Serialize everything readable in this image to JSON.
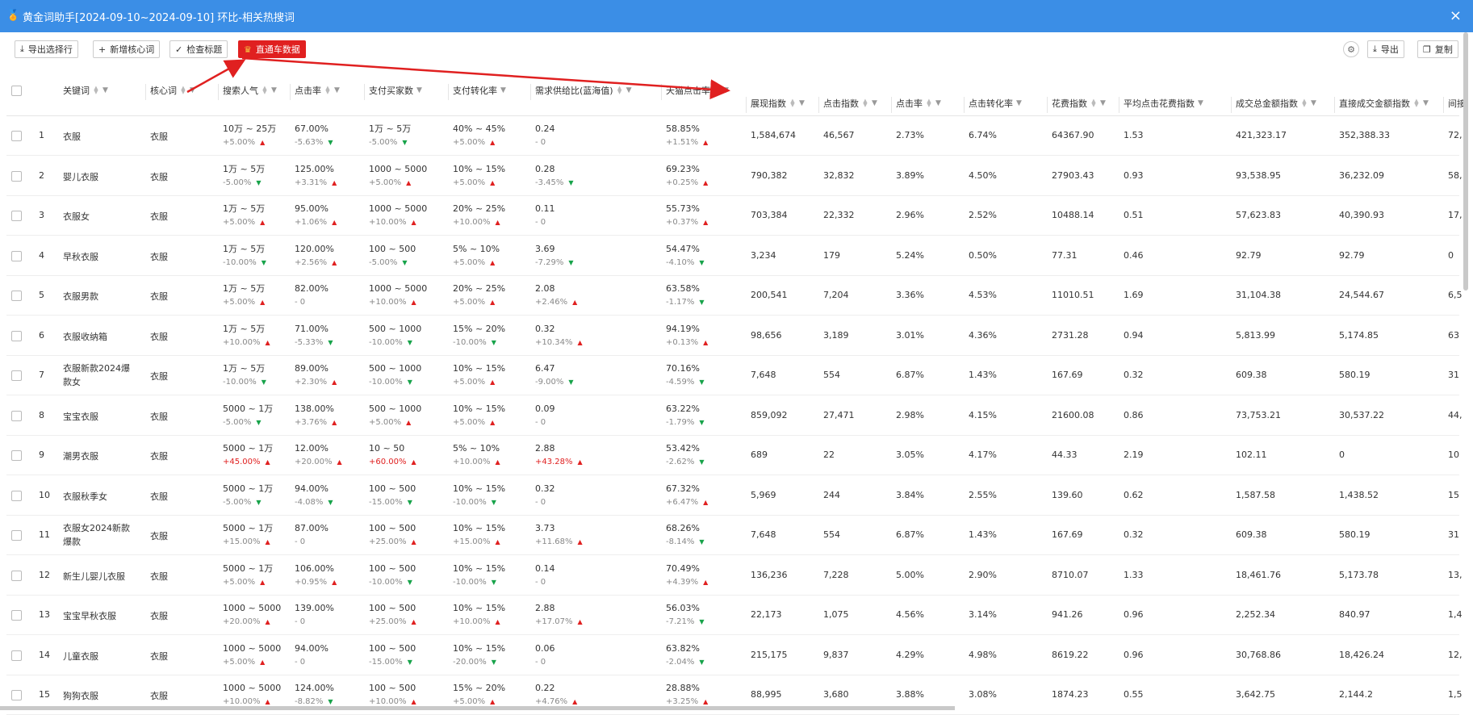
{
  "window": {
    "title": "黄金词助手[2024-09-10~2024-09-10] 环比-相关热搜词",
    "close_icon": "×"
  },
  "toolbar": {
    "export_selected": "导出选择行",
    "add_core": "新增核心词",
    "check_title": "检查标题",
    "ztc_data": "直通车数据",
    "export": "导出",
    "copy": "复制"
  },
  "columns": [
    "关键词",
    "核心词",
    "搜索人气",
    "点击率",
    "支付买家数",
    "支付转化率",
    "需求供给比(蓝海值)",
    "天猫点击率",
    "展现指数",
    "点击指数",
    "点击率",
    "点击转化率",
    "花费指数",
    "平均点击花费指数",
    "成交总金额指数",
    "直接成交金额指数",
    "间接"
  ],
  "rows": [
    {
      "no": "1",
      "kw": "衣服",
      "core": "衣服",
      "pop": "10万 ~ 25万",
      "pop_c": "+5.00%",
      "pop_d": "up",
      "ctr": "67.00%",
      "ctr_c": "-5.63%",
      "ctr_d": "down",
      "buyers": "1万 ~ 5万",
      "buyers_c": "-5.00%",
      "buyers_d": "down",
      "conv": "40% ~ 45%",
      "conv_c": "+5.00%",
      "conv_d": "up",
      "ratio": "0.24",
      "ratio_c": "-  0",
      "ratio_d": "",
      "tm": "58.85%",
      "tm_c": "+1.51%",
      "tm_d": "up",
      "show": "1,584,674",
      "click": "46,567",
      "ctr2": "2.73%",
      "cvr": "6.74%",
      "cost": "64367.90",
      "cpc": "1.53",
      "gmv": "421,323.17",
      "direct": "352,388.33",
      "ind": "72,"
    },
    {
      "no": "2",
      "kw": "婴儿衣服",
      "core": "衣服",
      "pop": "1万 ~ 5万",
      "pop_c": "-5.00%",
      "pop_d": "down",
      "ctr": "125.00%",
      "ctr_c": "+3.31%",
      "ctr_d": "up",
      "buyers": "1000 ~ 5000",
      "buyers_c": "+5.00%",
      "buyers_d": "up",
      "conv": "10% ~ 15%",
      "conv_c": "+5.00%",
      "conv_d": "up",
      "ratio": "0.28",
      "ratio_c": "-3.45%",
      "ratio_d": "down",
      "tm": "69.23%",
      "tm_c": "+0.25%",
      "tm_d": "up",
      "show": "790,382",
      "click": "32,832",
      "ctr2": "3.89%",
      "cvr": "4.50%",
      "cost": "27903.43",
      "cpc": "0.93",
      "gmv": "93,538.95",
      "direct": "36,232.09",
      "ind": "58,"
    },
    {
      "no": "3",
      "kw": "衣服女",
      "core": "衣服",
      "pop": "1万 ~ 5万",
      "pop_c": "+5.00%",
      "pop_d": "up",
      "ctr": "95.00%",
      "ctr_c": "+1.06%",
      "ctr_d": "up",
      "buyers": "1000 ~ 5000",
      "buyers_c": "+10.00%",
      "buyers_d": "up",
      "conv": "20% ~ 25%",
      "conv_c": "+10.00%",
      "conv_d": "up",
      "ratio": "0.11",
      "ratio_c": "-  0",
      "ratio_d": "",
      "tm": "55.73%",
      "tm_c": "+0.37%",
      "tm_d": "up",
      "show": "703,384",
      "click": "22,332",
      "ctr2": "2.96%",
      "cvr": "2.52%",
      "cost": "10488.14",
      "cpc": "0.51",
      "gmv": "57,623.83",
      "direct": "40,390.93",
      "ind": "17,"
    },
    {
      "no": "4",
      "kw": "早秋衣服",
      "core": "衣服",
      "pop": "1万 ~ 5万",
      "pop_c": "-10.00%",
      "pop_d": "down",
      "ctr": "120.00%",
      "ctr_c": "+2.56%",
      "ctr_d": "up",
      "buyers": "100 ~ 500",
      "buyers_c": "-5.00%",
      "buyers_d": "down",
      "conv": "5% ~ 10%",
      "conv_c": "+5.00%",
      "conv_d": "up",
      "ratio": "3.69",
      "ratio_c": "-7.29%",
      "ratio_d": "down",
      "tm": "54.47%",
      "tm_c": "-4.10%",
      "tm_d": "down",
      "show": "3,234",
      "click": "179",
      "ctr2": "5.24%",
      "cvr": "0.50%",
      "cost": "77.31",
      "cpc": "0.46",
      "gmv": "92.79",
      "direct": "92.79",
      "ind": "0"
    },
    {
      "no": "5",
      "kw": "衣服男款",
      "core": "衣服",
      "pop": "1万 ~ 5万",
      "pop_c": "+5.00%",
      "pop_d": "up",
      "ctr": "82.00%",
      "ctr_c": "-  0",
      "ctr_d": "",
      "buyers": "1000 ~ 5000",
      "buyers_c": "+10.00%",
      "buyers_d": "up",
      "conv": "20% ~ 25%",
      "conv_c": "+5.00%",
      "conv_d": "up",
      "ratio": "2.08",
      "ratio_c": "+2.46%",
      "ratio_d": "up",
      "tm": "63.58%",
      "tm_c": "-1.17%",
      "tm_d": "down",
      "show": "200,541",
      "click": "7,204",
      "ctr2": "3.36%",
      "cvr": "4.53%",
      "cost": "11010.51",
      "cpc": "1.69",
      "gmv": "31,104.38",
      "direct": "24,544.67",
      "ind": "6,5"
    },
    {
      "no": "6",
      "kw": "衣服收纳箱",
      "core": "衣服",
      "pop": "1万 ~ 5万",
      "pop_c": "+10.00%",
      "pop_d": "up",
      "ctr": "71.00%",
      "ctr_c": "-5.33%",
      "ctr_d": "down",
      "buyers": "500 ~ 1000",
      "buyers_c": "-10.00%",
      "buyers_d": "down",
      "conv": "15% ~ 20%",
      "conv_c": "-10.00%",
      "conv_d": "down",
      "ratio": "0.32",
      "ratio_c": "+10.34%",
      "ratio_d": "up",
      "tm": "94.19%",
      "tm_c": "+0.13%",
      "tm_d": "up",
      "show": "98,656",
      "click": "3,189",
      "ctr2": "3.01%",
      "cvr": "4.36%",
      "cost": "2731.28",
      "cpc": "0.94",
      "gmv": "5,813.99",
      "direct": "5,174.85",
      "ind": "63"
    },
    {
      "no": "7",
      "kw": "衣服新款2024爆款女",
      "core": "衣服",
      "pop": "1万 ~ 5万",
      "pop_c": "-10.00%",
      "pop_d": "down",
      "ctr": "89.00%",
      "ctr_c": "+2.30%",
      "ctr_d": "up",
      "buyers": "500 ~ 1000",
      "buyers_c": "-10.00%",
      "buyers_d": "down",
      "conv": "10% ~ 15%",
      "conv_c": "+5.00%",
      "conv_d": "up",
      "ratio": "6.47",
      "ratio_c": "-9.00%",
      "ratio_d": "down",
      "tm": "70.16%",
      "tm_c": "-4.59%",
      "tm_d": "down",
      "show": "7,648",
      "click": "554",
      "ctr2": "6.87%",
      "cvr": "1.43%",
      "cost": "167.69",
      "cpc": "0.32",
      "gmv": "609.38",
      "direct": "580.19",
      "ind": "31"
    },
    {
      "no": "8",
      "kw": "宝宝衣服",
      "core": "衣服",
      "pop": "5000 ~ 1万",
      "pop_c": "-5.00%",
      "pop_d": "down",
      "ctr": "138.00%",
      "ctr_c": "+3.76%",
      "ctr_d": "up",
      "buyers": "500 ~ 1000",
      "buyers_c": "+5.00%",
      "buyers_d": "up",
      "conv": "10% ~ 15%",
      "conv_c": "+5.00%",
      "conv_d": "up",
      "ratio": "0.09",
      "ratio_c": "-  0",
      "ratio_d": "",
      "tm": "63.22%",
      "tm_c": "-1.79%",
      "tm_d": "down",
      "show": "859,092",
      "click": "27,471",
      "ctr2": "2.98%",
      "cvr": "4.15%",
      "cost": "21600.08",
      "cpc": "0.86",
      "gmv": "73,753.21",
      "direct": "30,537.22",
      "ind": "44,"
    },
    {
      "no": "9",
      "kw": "潮男衣服",
      "core": "衣服",
      "pop": "5000 ~ 1万",
      "pop_c": "+45.00%",
      "pop_d": "up",
      "pop_hot": true,
      "ctr": "12.00%",
      "ctr_c": "+20.00%",
      "ctr_d": "up",
      "buyers": "10 ~ 50",
      "buyers_c": "+60.00%",
      "buyers_d": "up",
      "buyers_hot": true,
      "conv": "5% ~ 10%",
      "conv_c": "+10.00%",
      "conv_d": "up",
      "ratio": "2.88",
      "ratio_c": "+43.28%",
      "ratio_d": "up",
      "ratio_hot": true,
      "tm": "53.42%",
      "tm_c": "-2.62%",
      "tm_d": "down",
      "show": "689",
      "click": "22",
      "ctr2": "3.05%",
      "cvr": "4.17%",
      "cost": "44.33",
      "cpc": "2.19",
      "gmv": "102.11",
      "direct": "0",
      "ind": "10"
    },
    {
      "no": "10",
      "kw": "衣服秋季女",
      "core": "衣服",
      "pop": "5000 ~ 1万",
      "pop_c": "-5.00%",
      "pop_d": "down",
      "ctr": "94.00%",
      "ctr_c": "-4.08%",
      "ctr_d": "down",
      "buyers": "100 ~ 500",
      "buyers_c": "-15.00%",
      "buyers_d": "down",
      "conv": "10% ~ 15%",
      "conv_c": "-10.00%",
      "conv_d": "down",
      "ratio": "0.32",
      "ratio_c": "-  0",
      "ratio_d": "",
      "tm": "67.32%",
      "tm_c": "+6.47%",
      "tm_d": "up",
      "show": "5,969",
      "click": "244",
      "ctr2": "3.84%",
      "cvr": "2.55%",
      "cost": "139.60",
      "cpc": "0.62",
      "gmv": "1,587.58",
      "direct": "1,438.52",
      "ind": "15"
    },
    {
      "no": "11",
      "kw": "衣服女2024新款爆款",
      "core": "衣服",
      "pop": "5000 ~ 1万",
      "pop_c": "+15.00%",
      "pop_d": "up",
      "ctr": "87.00%",
      "ctr_c": "-  0",
      "ctr_d": "",
      "buyers": "100 ~ 500",
      "buyers_c": "+25.00%",
      "buyers_d": "up",
      "conv": "10% ~ 15%",
      "conv_c": "+15.00%",
      "conv_d": "up",
      "ratio": "3.73",
      "ratio_c": "+11.68%",
      "ratio_d": "up",
      "tm": "68.26%",
      "tm_c": "-8.14%",
      "tm_d": "down",
      "show": "7,648",
      "click": "554",
      "ctr2": "6.87%",
      "cvr": "1.43%",
      "cost": "167.69",
      "cpc": "0.32",
      "gmv": "609.38",
      "direct": "580.19",
      "ind": "31"
    },
    {
      "no": "12",
      "kw": "新生儿婴儿衣服",
      "core": "衣服",
      "pop": "5000 ~ 1万",
      "pop_c": "+5.00%",
      "pop_d": "up",
      "ctr": "106.00%",
      "ctr_c": "+0.95%",
      "ctr_d": "up",
      "buyers": "100 ~ 500",
      "buyers_c": "-10.00%",
      "buyers_d": "down",
      "conv": "10% ~ 15%",
      "conv_c": "-10.00%",
      "conv_d": "down",
      "ratio": "0.14",
      "ratio_c": "-  0",
      "ratio_d": "",
      "tm": "70.49%",
      "tm_c": "+4.39%",
      "tm_d": "up",
      "show": "136,236",
      "click": "7,228",
      "ctr2": "5.00%",
      "cvr": "2.90%",
      "cost": "8710.07",
      "cpc": "1.33",
      "gmv": "18,461.76",
      "direct": "5,173.78",
      "ind": "13,"
    },
    {
      "no": "13",
      "kw": "宝宝早秋衣服",
      "core": "衣服",
      "pop": "1000 ~ 5000",
      "pop_c": "+20.00%",
      "pop_d": "up",
      "ctr": "139.00%",
      "ctr_c": "-  0",
      "ctr_d": "",
      "buyers": "100 ~ 500",
      "buyers_c": "+25.00%",
      "buyers_d": "up",
      "conv": "10% ~ 15%",
      "conv_c": "+10.00%",
      "conv_d": "up",
      "ratio": "2.88",
      "ratio_c": "+17.07%",
      "ratio_d": "up",
      "tm": "56.03%",
      "tm_c": "-7.21%",
      "tm_d": "down",
      "show": "22,173",
      "click": "1,075",
      "ctr2": "4.56%",
      "cvr": "3.14%",
      "cost": "941.26",
      "cpc": "0.96",
      "gmv": "2,252.34",
      "direct": "840.97",
      "ind": "1,4"
    },
    {
      "no": "14",
      "kw": "儿童衣服",
      "core": "衣服",
      "pop": "1000 ~ 5000",
      "pop_c": "+5.00%",
      "pop_d": "up",
      "ctr": "94.00%",
      "ctr_c": "-  0",
      "ctr_d": "",
      "buyers": "100 ~ 500",
      "buyers_c": "-15.00%",
      "buyers_d": "down",
      "conv": "10% ~ 15%",
      "conv_c": "-20.00%",
      "conv_d": "down",
      "ratio": "0.06",
      "ratio_c": "-  0",
      "ratio_d": "",
      "tm": "63.82%",
      "tm_c": "-2.04%",
      "tm_d": "down",
      "show": "215,175",
      "click": "9,837",
      "ctr2": "4.29%",
      "cvr": "4.98%",
      "cost": "8619.22",
      "cpc": "0.96",
      "gmv": "30,768.86",
      "direct": "18,426.24",
      "ind": "12,"
    },
    {
      "no": "15",
      "kw": "狗狗衣服",
      "core": "衣服",
      "pop": "1000 ~ 5000",
      "pop_c": "+10.00%",
      "pop_d": "up",
      "ctr": "124.00%",
      "ctr_c": "-8.82%",
      "ctr_d": "down",
      "buyers": "100 ~ 500",
      "buyers_c": "+10.00%",
      "buyers_d": "up",
      "conv": "15% ~ 20%",
      "conv_c": "+5.00%",
      "conv_d": "up",
      "ratio": "0.22",
      "ratio_c": "+4.76%",
      "ratio_d": "up",
      "tm": "28.88%",
      "tm_c": "+3.25%",
      "tm_d": "up",
      "show": "88,995",
      "click": "3,680",
      "ctr2": "3.88%",
      "cvr": "3.08%",
      "cost": "1874.23",
      "cpc": "0.55",
      "gmv": "3,642.75",
      "direct": "2,144.2",
      "ind": "1,5"
    }
  ],
  "icons": {
    "app": "gold-figure-icon",
    "export": "download-icon",
    "add": "plus-icon",
    "check": "check-icon",
    "settings": "gear-icon",
    "copy": "copy-icon"
  },
  "colors": {
    "titlebar": "#3b8ee6",
    "accent_red": "#e02020",
    "trend_up": "#e02020",
    "trend_down": "#17a34a"
  }
}
